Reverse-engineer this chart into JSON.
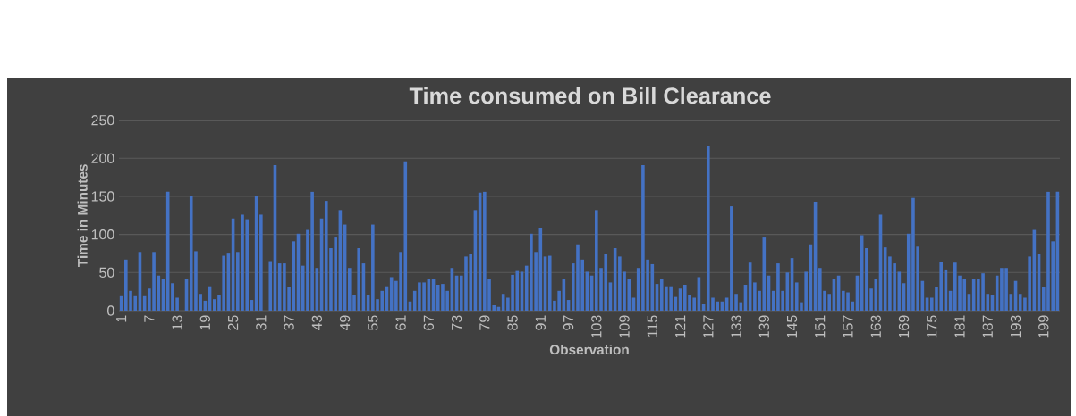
{
  "chart_data": {
    "type": "bar",
    "title": "Time consumed on Bill Clearance",
    "xlabel": "Observation",
    "ylabel": "Time in Minutes",
    "categories": [
      "1",
      null,
      null,
      null,
      null,
      null,
      "7",
      null,
      null,
      null,
      null,
      null,
      "13",
      null,
      null,
      null,
      null,
      null,
      "19",
      null,
      null,
      null,
      null,
      null,
      "25",
      null,
      null,
      null,
      null,
      null,
      "31",
      null,
      null,
      null,
      null,
      null,
      "37",
      null,
      null,
      null,
      null,
      null,
      "43",
      null,
      null,
      null,
      null,
      null,
      "49",
      null,
      null,
      null,
      null,
      null,
      "55",
      null,
      null,
      null,
      null,
      null,
      "61",
      null,
      null,
      null,
      null,
      null,
      "67",
      null,
      null,
      null,
      null,
      null,
      "73",
      null,
      null,
      null,
      null,
      null,
      "79",
      null,
      null,
      null,
      null,
      null,
      "85",
      null,
      null,
      null,
      null,
      null,
      "91",
      null,
      null,
      null,
      null,
      null,
      "97",
      null,
      null,
      null,
      null,
      null,
      "103",
      null,
      null,
      null,
      null,
      null,
      "109",
      null,
      null,
      null,
      null,
      null,
      "115",
      null,
      null,
      null,
      null,
      null,
      "121",
      null,
      null,
      null,
      null,
      null,
      "127",
      null,
      null,
      null,
      null,
      null,
      "133",
      null,
      null,
      null,
      null,
      null,
      "139",
      null,
      null,
      null,
      null,
      null,
      "145",
      null,
      null,
      null,
      null,
      null,
      "151",
      null,
      null,
      null,
      null,
      null,
      "157",
      null,
      null,
      null,
      null,
      null,
      "163",
      null,
      null,
      null,
      null,
      null,
      "169",
      null,
      null,
      null,
      null,
      null,
      "175",
      null,
      null,
      null,
      null,
      null,
      "181",
      null,
      null,
      null,
      null,
      null,
      "187",
      null,
      null,
      null,
      null,
      null,
      "193",
      null,
      null,
      null,
      null,
      null,
      "199",
      null,
      null,
      null
    ],
    "values": [
      19,
      67,
      26,
      19,
      77,
      19,
      29,
      77,
      46,
      41,
      156,
      36,
      17,
      0,
      41,
      151,
      78,
      22,
      13,
      32,
      15,
      20,
      72,
      76,
      121,
      77,
      126,
      120,
      14,
      151,
      126,
      0,
      65,
      191,
      62,
      62,
      31,
      91,
      101,
      59,
      106,
      156,
      56,
      121,
      144,
      82,
      96,
      132,
      113,
      56,
      20,
      82,
      62,
      21,
      113,
      15,
      26,
      32,
      44,
      39,
      77,
      196,
      12,
      26,
      37,
      37,
      41,
      41,
      34,
      35,
      26,
      56,
      46,
      46,
      71,
      75,
      132,
      155,
      156,
      41,
      7,
      5,
      22,
      17,
      47,
      52,
      51,
      59,
      101,
      77,
      109,
      71,
      72,
      13,
      26,
      41,
      14,
      62,
      87,
      67,
      51,
      46,
      132,
      56,
      75,
      37,
      82,
      71,
      51,
      41,
      17,
      56,
      191,
      67,
      61,
      35,
      41,
      32,
      32,
      18,
      29,
      34,
      21,
      17,
      44,
      9,
      216,
      17,
      12,
      12,
      17,
      137,
      22,
      11,
      34,
      63,
      37,
      26,
      96,
      46,
      26,
      62,
      26,
      50,
      69,
      37,
      11,
      51,
      87,
      143,
      56,
      26,
      22,
      41,
      46,
      26,
      24,
      12,
      46,
      99,
      82,
      29,
      41,
      126,
      83,
      71,
      62,
      51,
      36,
      101,
      148,
      84,
      39,
      17,
      17,
      31,
      64,
      54,
      26,
      63,
      46,
      41,
      22,
      41,
      41,
      49,
      22,
      20,
      46,
      56,
      56,
      22,
      39,
      22,
      17,
      71,
      106,
      75,
      31,
      156,
      91,
      156
    ],
    "color": "#4472c4",
    "ylim": [
      0,
      250
    ],
    "yticks": [
      0,
      50,
      100,
      150,
      200,
      250
    ],
    "grid": "y"
  }
}
